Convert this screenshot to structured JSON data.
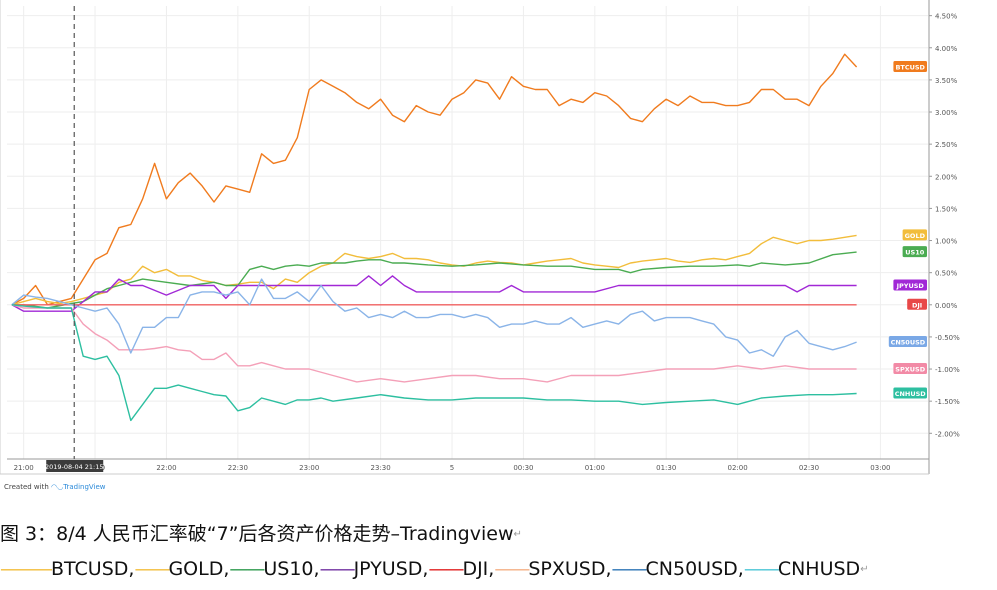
{
  "chart_data": {
    "type": "line",
    "unit": "%",
    "y_ticks": [
      "4.50%",
      "4.00%",
      "3.50%",
      "3.00%",
      "2.50%",
      "2.00%",
      "1.50%",
      "1.00%",
      "0.50%",
      "0.00%",
      "-0.50%",
      "-1.00%",
      "-1.50%",
      "-2.00%"
    ],
    "y_tick_values": [
      4.5,
      4.0,
      3.5,
      3.0,
      2.5,
      2.0,
      1.5,
      1.0,
      0.5,
      0.0,
      -0.5,
      -1.0,
      -1.5,
      -2.0
    ],
    "ylim": [
      -2.4,
      4.65
    ],
    "x_ticks": [
      "21:00",
      "21:30",
      "22:00",
      "22:30",
      "23:00",
      "23:30",
      "5",
      "00:30",
      "01:00",
      "01:30",
      "02:00",
      "02:30",
      "03:00"
    ],
    "x_tick_values": [
      0,
      30,
      60,
      90,
      120,
      150,
      180,
      210,
      240,
      270,
      300,
      330,
      360
    ],
    "xlim": [
      -7,
      380
    ],
    "crosshair": {
      "x": 21.25,
      "label": "2019-08-04   21:15"
    },
    "grid": true,
    "series": [
      {
        "name": "BTCUSD",
        "color": "#f07b1e",
        "label_bg": "#f07b1e",
        "x": [
          -5,
          0,
          5,
          10,
          15,
          20,
          25,
          30,
          35,
          40,
          45,
          50,
          55,
          60,
          65,
          70,
          75,
          80,
          85,
          90,
          95,
          100,
          105,
          110,
          115,
          120,
          125,
          130,
          135,
          140,
          145,
          150,
          155,
          160,
          165,
          170,
          175,
          180,
          185,
          190,
          195,
          200,
          205,
          210,
          215,
          220,
          225,
          230,
          235,
          240,
          245,
          250,
          255,
          260,
          265,
          270,
          275,
          280,
          285,
          290,
          295,
          300,
          305,
          310,
          315,
          320,
          325,
          330,
          335,
          340,
          345,
          350
        ],
        "y": [
          0,
          0.1,
          0.3,
          0,
          0.05,
          0.1,
          0.4,
          0.7,
          0.8,
          1.2,
          1.25,
          1.65,
          2.2,
          1.65,
          1.9,
          2.05,
          1.85,
          1.6,
          1.85,
          1.8,
          1.75,
          2.35,
          2.2,
          2.25,
          2.6,
          3.35,
          3.5,
          3.4,
          3.3,
          3.15,
          3.05,
          3.2,
          2.95,
          2.85,
          3.1,
          3.0,
          2.95,
          3.2,
          3.3,
          3.5,
          3.45,
          3.2,
          3.55,
          3.4,
          3.35,
          3.35,
          3.1,
          3.2,
          3.15,
          3.3,
          3.25,
          3.1,
          2.9,
          2.85,
          3.05,
          3.2,
          3.1,
          3.25,
          3.15,
          3.15,
          3.1,
          3.1,
          3.15,
          3.35,
          3.35,
          3.2,
          3.2,
          3.1,
          3.4,
          3.6,
          3.9,
          3.7
        ]
      },
      {
        "name": "GOLD",
        "color": "#f2bd3b",
        "label_bg": "#f2bd3b",
        "x": [
          -5,
          0,
          5,
          10,
          15,
          20,
          25,
          30,
          35,
          40,
          45,
          50,
          55,
          60,
          65,
          70,
          75,
          80,
          85,
          90,
          95,
          100,
          105,
          110,
          115,
          120,
          125,
          130,
          135,
          140,
          145,
          150,
          155,
          160,
          165,
          170,
          175,
          180,
          185,
          190,
          195,
          200,
          205,
          210,
          215,
          220,
          225,
          230,
          235,
          240,
          245,
          250,
          255,
          260,
          265,
          270,
          275,
          280,
          285,
          290,
          295,
          300,
          305,
          310,
          315,
          320,
          325,
          330,
          335,
          340,
          345,
          350
        ],
        "y": [
          0,
          0.05,
          0.1,
          0.05,
          0.02,
          0.05,
          0.1,
          0.15,
          0.2,
          0.35,
          0.4,
          0.6,
          0.5,
          0.55,
          0.45,
          0.45,
          0.38,
          0.35,
          0.3,
          0.32,
          0.35,
          0.35,
          0.25,
          0.4,
          0.35,
          0.5,
          0.6,
          0.65,
          0.8,
          0.75,
          0.72,
          0.75,
          0.8,
          0.72,
          0.72,
          0.7,
          0.65,
          0.62,
          0.6,
          0.65,
          0.68,
          0.66,
          0.65,
          0.62,
          0.65,
          0.68,
          0.7,
          0.72,
          0.65,
          0.62,
          0.6,
          0.58,
          0.65,
          0.68,
          0.7,
          0.72,
          0.68,
          0.66,
          0.7,
          0.72,
          0.7,
          0.75,
          0.8,
          0.95,
          1.05,
          1.0,
          0.95,
          1.0,
          1.0,
          1.02,
          1.05,
          1.08
        ]
      },
      {
        "name": "US10",
        "color": "#4bac52",
        "label_bg": "#4bac52",
        "x": [
          -5,
          0,
          10,
          20,
          25,
          30,
          35,
          40,
          45,
          50,
          60,
          70,
          80,
          85,
          90,
          95,
          100,
          105,
          110,
          115,
          120,
          125,
          130,
          135,
          140,
          145,
          150,
          155,
          160,
          170,
          180,
          190,
          200,
          210,
          220,
          230,
          240,
          250,
          255,
          260,
          270,
          280,
          290,
          300,
          305,
          310,
          320,
          330,
          340,
          350
        ],
        "y": [
          0,
          0,
          -0.05,
          0.02,
          0.05,
          0.15,
          0.25,
          0.3,
          0.35,
          0.4,
          0.35,
          0.3,
          0.35,
          0.3,
          0.3,
          0.55,
          0.6,
          0.55,
          0.6,
          0.62,
          0.6,
          0.65,
          0.65,
          0.65,
          0.68,
          0.7,
          0.7,
          0.65,
          0.65,
          0.62,
          0.6,
          0.62,
          0.65,
          0.62,
          0.6,
          0.6,
          0.55,
          0.55,
          0.5,
          0.55,
          0.58,
          0.6,
          0.6,
          0.62,
          0.6,
          0.65,
          0.62,
          0.65,
          0.78,
          0.82
        ]
      },
      {
        "name": "JPYUSD",
        "color": "#a128d6",
        "label_bg": "#a128d6",
        "x": [
          -5,
          0,
          10,
          20,
          30,
          35,
          40,
          45,
          50,
          60,
          70,
          80,
          85,
          90,
          95,
          100,
          110,
          120,
          130,
          140,
          145,
          150,
          155,
          160,
          165,
          170,
          180,
          190,
          200,
          205,
          210,
          220,
          230,
          240,
          250,
          260,
          270,
          280,
          290,
          300,
          310,
          320,
          325,
          330,
          340,
          350
        ],
        "y": [
          0,
          -0.1,
          -0.1,
          -0.1,
          0.2,
          0.2,
          0.4,
          0.3,
          0.3,
          0.15,
          0.3,
          0.3,
          0.1,
          0.3,
          0.3,
          0.3,
          0.3,
          0.3,
          0.3,
          0.3,
          0.45,
          0.3,
          0.45,
          0.3,
          0.2,
          0.2,
          0.2,
          0.2,
          0.2,
          0.3,
          0.2,
          0.2,
          0.2,
          0.2,
          0.3,
          0.3,
          0.3,
          0.3,
          0.3,
          0.3,
          0.3,
          0.3,
          0.2,
          0.3,
          0.3,
          0.3
        ]
      },
      {
        "name": "DJI",
        "color": "#f06060",
        "label_bg": "#e84848",
        "x": [
          -5,
          350
        ],
        "y": [
          0,
          0
        ]
      },
      {
        "name": "SPXUSD",
        "color": "#f4a0b8",
        "label_bg": "#f28aa6",
        "x": [
          -5,
          0,
          10,
          20,
          25,
          30,
          35,
          40,
          45,
          50,
          55,
          60,
          65,
          70,
          75,
          80,
          85,
          90,
          95,
          100,
          105,
          110,
          115,
          120,
          130,
          140,
          150,
          160,
          170,
          180,
          190,
          200,
          210,
          220,
          230,
          240,
          250,
          260,
          270,
          280,
          290,
          300,
          310,
          320,
          330,
          340,
          350
        ],
        "y": [
          0,
          -0.05,
          -0.05,
          -0.05,
          -0.3,
          -0.45,
          -0.55,
          -0.7,
          -0.7,
          -0.7,
          -0.68,
          -0.65,
          -0.7,
          -0.72,
          -0.85,
          -0.85,
          -0.75,
          -0.95,
          -0.95,
          -0.9,
          -0.95,
          -1.0,
          -1.0,
          -1.0,
          -1.1,
          -1.2,
          -1.15,
          -1.2,
          -1.15,
          -1.1,
          -1.1,
          -1.15,
          -1.15,
          -1.2,
          -1.1,
          -1.1,
          -1.1,
          -1.05,
          -1.0,
          -1.0,
          -1.0,
          -0.95,
          -1.0,
          -0.95,
          -1.0,
          -1.0,
          -1.0
        ]
      },
      {
        "name": "CN50USD",
        "color": "#8ab4e8",
        "label_bg": "#7aa8e6",
        "x": [
          -5,
          0,
          5,
          10,
          15,
          20,
          25,
          30,
          35,
          40,
          45,
          50,
          55,
          60,
          65,
          70,
          75,
          80,
          85,
          90,
          95,
          100,
          105,
          110,
          115,
          120,
          125,
          130,
          135,
          140,
          145,
          150,
          155,
          160,
          165,
          170,
          175,
          180,
          185,
          190,
          195,
          200,
          205,
          210,
          215,
          220,
          225,
          230,
          235,
          240,
          245,
          250,
          255,
          260,
          265,
          270,
          275,
          280,
          285,
          290,
          295,
          300,
          305,
          310,
          315,
          320,
          325,
          330,
          335,
          340,
          345,
          350
        ],
        "y": [
          0,
          0.15,
          0.12,
          0.1,
          0.05,
          0,
          -0.05,
          -0.1,
          -0.05,
          -0.3,
          -0.75,
          -0.35,
          -0.35,
          -0.2,
          -0.2,
          0.15,
          0.2,
          0.2,
          0.15,
          0.2,
          0,
          0.4,
          0.1,
          0.1,
          0.2,
          0.05,
          0.3,
          0.05,
          -0.1,
          -0.05,
          -0.2,
          -0.15,
          -0.2,
          -0.1,
          -0.2,
          -0.2,
          -0.15,
          -0.15,
          -0.2,
          -0.15,
          -0.2,
          -0.35,
          -0.3,
          -0.3,
          -0.25,
          -0.3,
          -0.3,
          -0.2,
          -0.35,
          -0.3,
          -0.25,
          -0.3,
          -0.15,
          -0.1,
          -0.25,
          -0.2,
          -0.2,
          -0.2,
          -0.25,
          -0.3,
          -0.5,
          -0.55,
          -0.75,
          -0.7,
          -0.8,
          -0.5,
          -0.4,
          -0.6,
          -0.65,
          -0.7,
          -0.65,
          -0.58
        ]
      },
      {
        "name": "CNHUSD",
        "color": "#2dbfa0",
        "label_bg": "#2dbfa0",
        "x": [
          -5,
          0,
          10,
          20,
          25,
          30,
          35,
          40,
          45,
          50,
          55,
          60,
          65,
          70,
          75,
          80,
          85,
          90,
          95,
          100,
          105,
          110,
          115,
          120,
          125,
          130,
          140,
          150,
          160,
          170,
          180,
          190,
          200,
          210,
          220,
          230,
          240,
          250,
          260,
          270,
          280,
          290,
          300,
          305,
          310,
          320,
          330,
          340,
          350
        ],
        "y": [
          0,
          -0.02,
          -0.05,
          -0.05,
          -0.8,
          -0.85,
          -0.8,
          -1.1,
          -1.8,
          -1.55,
          -1.3,
          -1.3,
          -1.25,
          -1.3,
          -1.35,
          -1.4,
          -1.42,
          -1.65,
          -1.6,
          -1.45,
          -1.5,
          -1.55,
          -1.48,
          -1.48,
          -1.45,
          -1.5,
          -1.45,
          -1.4,
          -1.45,
          -1.48,
          -1.48,
          -1.45,
          -1.45,
          -1.45,
          -1.48,
          -1.48,
          -1.5,
          -1.5,
          -1.55,
          -1.52,
          -1.5,
          -1.48,
          -1.55,
          -1.5,
          -1.45,
          -1.42,
          -1.4,
          -1.4,
          -1.38
        ]
      }
    ]
  },
  "footer": {
    "credit_prefix": "Created with ",
    "credit_brand": "TradingView",
    "caption": "图 3：8/4 人民币汇率破“7”后各资产价格走势–Tradingview",
    "caption_mark": "↵",
    "legend_items": [
      {
        "line": "———",
        "label": "BTCUSD,",
        "color": "#f2bd3b"
      },
      {
        "line": "——",
        "label": "GOLD,",
        "color": "#f2bd3b"
      },
      {
        "line": "——",
        "label": "US10,",
        "color": "#2d9a4e"
      },
      {
        "line": "——",
        "label": "JPYUSD,",
        "color": "#7030a0"
      },
      {
        "line": "——",
        "label": "DJI,",
        "color": "#e02020"
      },
      {
        "line": "——",
        "label": "SPXUSD,",
        "color": "#f4b084"
      },
      {
        "line": "——",
        "label": "CN50USD,",
        "color": "#2e75b6"
      },
      {
        "line": "——",
        "label": "CNHUSD",
        "color": "#4bc6d6"
      }
    ],
    "legend_mark": "↵"
  }
}
